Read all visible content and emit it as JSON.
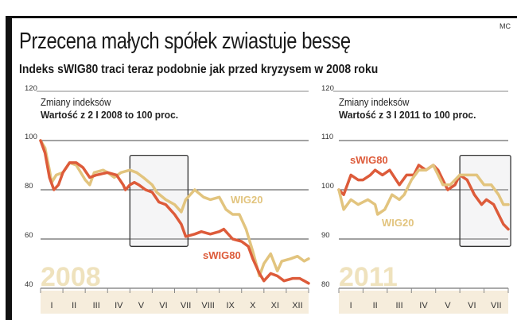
{
  "header": {
    "title": "Przecena małych spółek zwiastuje bessę",
    "subtitle": "Indeks sWIG80 traci teraz podobnie jak przed kryzysem w 2008 roku",
    "credit": "MC"
  },
  "colors": {
    "wig20": "#e2c47e",
    "swig80": "#dd5b3a",
    "year": "#efe2bd",
    "band": "#f6eddc"
  },
  "chart_data": [
    {
      "type": "line",
      "title": "Zmiany indeksów",
      "subtitle": "Wartość z 2 I 2008 to 100 proc.",
      "year_label": "2008",
      "ylim": [
        40,
        120
      ],
      "yticks": [
        "120",
        "100",
        "80",
        "60",
        "40"
      ],
      "ytick_values": [
        120,
        100,
        80,
        60,
        40
      ],
      "categories": [
        "I",
        "II",
        "III",
        "IV",
        "V",
        "VI",
        "VII",
        "VIII",
        "IX",
        "X",
        "XI",
        "XII"
      ],
      "x_unit": "months",
      "highlight_months": [
        4,
        6.6
      ],
      "highlight_values": [
        57,
        94
      ],
      "series": [
        {
          "name": "WIG20",
          "x": [
            0,
            0.2,
            0.4,
            0.5,
            0.7,
            1.0,
            1.3,
            1.6,
            2.0,
            2.2,
            2.4,
            2.8,
            3.0,
            3.3,
            3.6,
            4.0,
            4.3,
            4.6,
            5.0,
            5.2,
            5.6,
            6.0,
            6.3,
            6.5,
            6.9,
            7.3,
            7.6,
            8.0,
            8.3,
            8.6,
            8.9,
            9.2,
            9.5,
            9.8,
            10.0,
            10.3,
            10.6,
            10.8,
            11.2,
            11.5,
            11.8,
            12
          ],
          "values": [
            100,
            97,
            88,
            83,
            86,
            87,
            91,
            90,
            84,
            82,
            87,
            88,
            87,
            85,
            87,
            88,
            87,
            85,
            82,
            79,
            76,
            74,
            71,
            76,
            80,
            77,
            76,
            77,
            72,
            70,
            70,
            64,
            55,
            45,
            50,
            54,
            47,
            51,
            52,
            53,
            51,
            52
          ]
        },
        {
          "name": "sWIG80",
          "x": [
            0,
            0.2,
            0.4,
            0.6,
            0.8,
            1.0,
            1.3,
            1.6,
            1.9,
            2.2,
            2.5,
            3.0,
            3.4,
            3.7,
            3.8,
            4.0,
            4.2,
            4.4,
            4.7,
            5.0,
            5.3,
            5.6,
            6.0,
            6.3,
            6.5,
            6.9,
            7.2,
            7.6,
            8.0,
            8.2,
            8.6,
            9.0,
            9.3,
            9.5,
            9.8,
            10.0,
            10.3,
            10.6,
            10.9,
            11.3,
            11.6,
            12
          ],
          "values": [
            100,
            95,
            85,
            80,
            82,
            87,
            91,
            91,
            89,
            85,
            86,
            87,
            86,
            82,
            80,
            82,
            83,
            82,
            80,
            79,
            75,
            74,
            70,
            66,
            61,
            62,
            63,
            62,
            63,
            64,
            60,
            59,
            57,
            52,
            46,
            43,
            46,
            45,
            43,
            44,
            44,
            42
          ]
        }
      ]
    },
    {
      "type": "line",
      "title": "Zmiany indeksów",
      "subtitle": "Wartość z 3 I 2011 to 100 proc.",
      "year_label": "2011",
      "ylim": [
        80,
        120
      ],
      "yticks": [
        "120",
        "110",
        "100",
        "90",
        "80"
      ],
      "ytick_values": [
        120,
        110,
        100,
        90,
        80
      ],
      "categories": [
        "I",
        "II",
        "III",
        "IV",
        "V",
        "VI",
        "VII"
      ],
      "x_unit": "months",
      "highlight_months": [
        5,
        7.1
      ],
      "highlight_values": [
        88.5,
        107
      ],
      "series": [
        {
          "name": "sWIG80",
          "x": [
            0,
            0.2,
            0.5,
            0.8,
            1.0,
            1.3,
            1.5,
            1.8,
            2.1,
            2.5,
            2.8,
            3.1,
            3.3,
            3.6,
            3.9,
            4.1,
            4.3,
            4.5,
            4.8,
            5.0,
            5.3,
            5.6,
            5.9,
            6.1,
            6.4,
            6.6,
            6.8,
            7
          ],
          "values": [
            100,
            99,
            103,
            102,
            102,
            103,
            104,
            103,
            104,
            101,
            103,
            103,
            105,
            104,
            105,
            104,
            102,
            100,
            101,
            103,
            102,
            99,
            97,
            98,
            97,
            95,
            93,
            92
          ]
        },
        {
          "name": "WIG20",
          "x": [
            0,
            0.2,
            0.5,
            0.8,
            1.2,
            1.5,
            1.6,
            1.9,
            2.2,
            2.5,
            2.7,
            3.0,
            3.3,
            3.6,
            3.9,
            4.1,
            4.3,
            4.6,
            5.0,
            5.3,
            5.7,
            6.0,
            6.3,
            6.6,
            6.8,
            7
          ],
          "values": [
            100,
            96,
            98,
            97,
            98,
            97,
            95,
            96,
            99,
            98,
            99,
            102,
            104,
            104,
            105,
            103,
            101,
            101,
            103,
            103,
            103,
            101,
            101,
            99,
            97,
            97
          ]
        }
      ]
    }
  ]
}
